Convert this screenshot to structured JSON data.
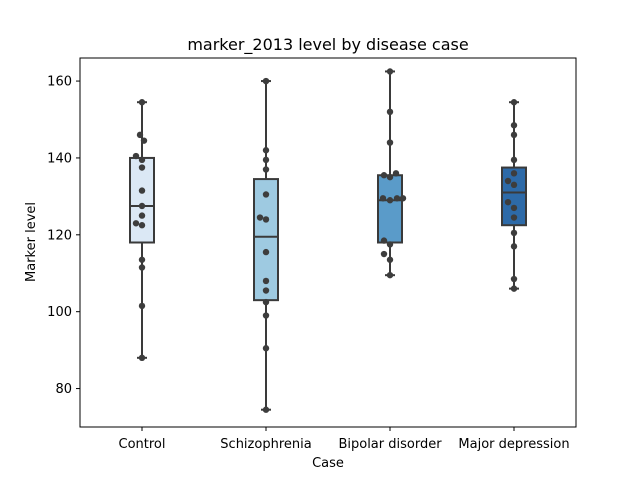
{
  "chart_data": {
    "type": "box",
    "title": "marker_2013 level by disease case",
    "xlabel": "Case",
    "ylabel": "Marker level",
    "ylim": [
      70,
      166
    ],
    "yticks": [
      80,
      100,
      120,
      140,
      160
    ],
    "grid": false,
    "categories": [
      "Control",
      "Schizophrenia",
      "Bipolar disorder",
      "Major depression"
    ],
    "colors": [
      "#dbe8f5",
      "#9ecae1",
      "#5a9bc9",
      "#2d6aa8"
    ],
    "boxes": [
      {
        "min": 88,
        "q1": 118,
        "median": 127.5,
        "q3": 140,
        "max": 154.5
      },
      {
        "min": 74.5,
        "q1": 103,
        "median": 119.5,
        "q3": 134.5,
        "max": 160
      },
      {
        "min": 109.5,
        "q1": 118,
        "median": 129,
        "q3": 135.5,
        "max": 162.5
      },
      {
        "min": 106,
        "q1": 122.5,
        "median": 131,
        "q3": 137.5,
        "max": 154.5
      }
    ],
    "points": [
      [
        {
          "dx": 0,
          "y": 154.5
        },
        {
          "dx": -2,
          "y": 146
        },
        {
          "dx": 2,
          "y": 144.5
        },
        {
          "dx": -6,
          "y": 140.5
        },
        {
          "dx": 0,
          "y": 139.5
        },
        {
          "dx": 0,
          "y": 137.5
        },
        {
          "dx": 0,
          "y": 131.5
        },
        {
          "dx": 0,
          "y": 127.5
        },
        {
          "dx": 0,
          "y": 125
        },
        {
          "dx": -6,
          "y": 123
        },
        {
          "dx": 0,
          "y": 122.5
        },
        {
          "dx": 0,
          "y": 113.5
        },
        {
          "dx": 0,
          "y": 111.5
        },
        {
          "dx": 0,
          "y": 101.5
        },
        {
          "dx": 0,
          "y": 88
        }
      ],
      [
        {
          "dx": 0,
          "y": 160
        },
        {
          "dx": 0,
          "y": 142
        },
        {
          "dx": 0,
          "y": 139.5
        },
        {
          "dx": 0,
          "y": 137
        },
        {
          "dx": 0,
          "y": 130.5
        },
        {
          "dx": -6,
          "y": 124.5
        },
        {
          "dx": 0,
          "y": 124
        },
        {
          "dx": 0,
          "y": 115.5
        },
        {
          "dx": 0,
          "y": 108
        },
        {
          "dx": 0,
          "y": 105.5
        },
        {
          "dx": 0,
          "y": 102.5
        },
        {
          "dx": 0,
          "y": 99
        },
        {
          "dx": 0,
          "y": 90.5
        },
        {
          "dx": 0,
          "y": 74.5
        }
      ],
      [
        {
          "dx": 0,
          "y": 162.5
        },
        {
          "dx": 0,
          "y": 152
        },
        {
          "dx": 0,
          "y": 144
        },
        {
          "dx": -6,
          "y": 135.5
        },
        {
          "dx": 6,
          "y": 136
        },
        {
          "dx": 0,
          "y": 135
        },
        {
          "dx": -7,
          "y": 129.5
        },
        {
          "dx": 0,
          "y": 129
        },
        {
          "dx": 7,
          "y": 129.5
        },
        {
          "dx": 13,
          "y": 129.5
        },
        {
          "dx": -6,
          "y": 118.5
        },
        {
          "dx": 0,
          "y": 117.5
        },
        {
          "dx": -6,
          "y": 115
        },
        {
          "dx": 0,
          "y": 113.5
        },
        {
          "dx": 0,
          "y": 109.5
        }
      ],
      [
        {
          "dx": 0,
          "y": 154.5
        },
        {
          "dx": 0,
          "y": 148.5
        },
        {
          "dx": 0,
          "y": 146
        },
        {
          "dx": 0,
          "y": 139.5
        },
        {
          "dx": 0,
          "y": 136
        },
        {
          "dx": -6,
          "y": 134
        },
        {
          "dx": 0,
          "y": 133
        },
        {
          "dx": -6,
          "y": 128.5
        },
        {
          "dx": 0,
          "y": 127
        },
        {
          "dx": 0,
          "y": 124.5
        },
        {
          "dx": 0,
          "y": 120.5
        },
        {
          "dx": 0,
          "y": 117
        },
        {
          "dx": 0,
          "y": 108.5
        },
        {
          "dx": 0,
          "y": 106
        }
      ]
    ]
  }
}
